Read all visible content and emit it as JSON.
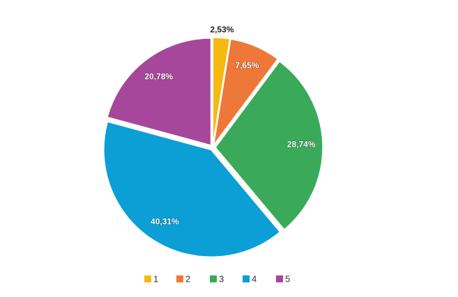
{
  "chart_data": {
    "type": "pie",
    "categories": [
      "1",
      "2",
      "3",
      "4",
      "5"
    ],
    "values": [
      2.53,
      7.65,
      28.74,
      40.31,
      20.78
    ],
    "value_labels": [
      "2,53%",
      "7,65%",
      "28,74%",
      "40,31%",
      "20,78%"
    ],
    "colors": [
      "#f5b912",
      "#ee7838",
      "#3aaa5a",
      "#0b9fd6",
      "#a6479b"
    ],
    "legend": "bottom"
  }
}
